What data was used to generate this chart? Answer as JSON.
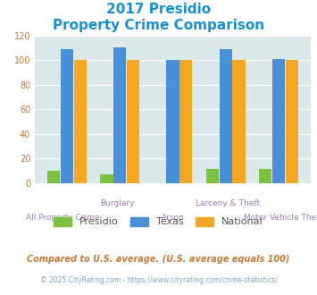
{
  "title_line1": "2017 Presidio",
  "title_line2": "Property Crime Comparison",
  "title_color": "#1b8fd4",
  "categories": [
    "All Property Crime",
    "Burglary",
    "Arson",
    "Larceny & Theft",
    "Motor Vehicle Theft"
  ],
  "row1_labels": [
    "",
    "Burglary",
    "",
    "Larceny & Theft",
    ""
  ],
  "row2_labels": [
    "All Property Crime",
    "",
    "Arson",
    "",
    "Motor Vehicle Theft"
  ],
  "presidio": [
    10,
    7,
    0,
    11,
    11
  ],
  "texas": [
    109,
    110,
    100,
    109,
    101
  ],
  "national": [
    100,
    100,
    100,
    100,
    100
  ],
  "presidio_color": "#7cc142",
  "texas_color": "#4a90d9",
  "national_color": "#f5a623",
  "bg_color": "#dce9ea",
  "ylim": [
    0,
    120
  ],
  "yticks": [
    0,
    20,
    40,
    60,
    80,
    100,
    120
  ],
  "ytick_color": "#c97a3a",
  "xtick_color": "#9b7fb6",
  "footnote1": "Compared to U.S. average. (U.S. average equals 100)",
  "footnote2": "© 2025 CityRating.com - https://www.cityrating.com/crime-statistics/",
  "footnote1_color": "#c97a3a",
  "footnote2_color": "#7da8c9",
  "legend_labels": [
    "Presidio",
    "Texas",
    "National"
  ],
  "legend_text_color": "#555555"
}
